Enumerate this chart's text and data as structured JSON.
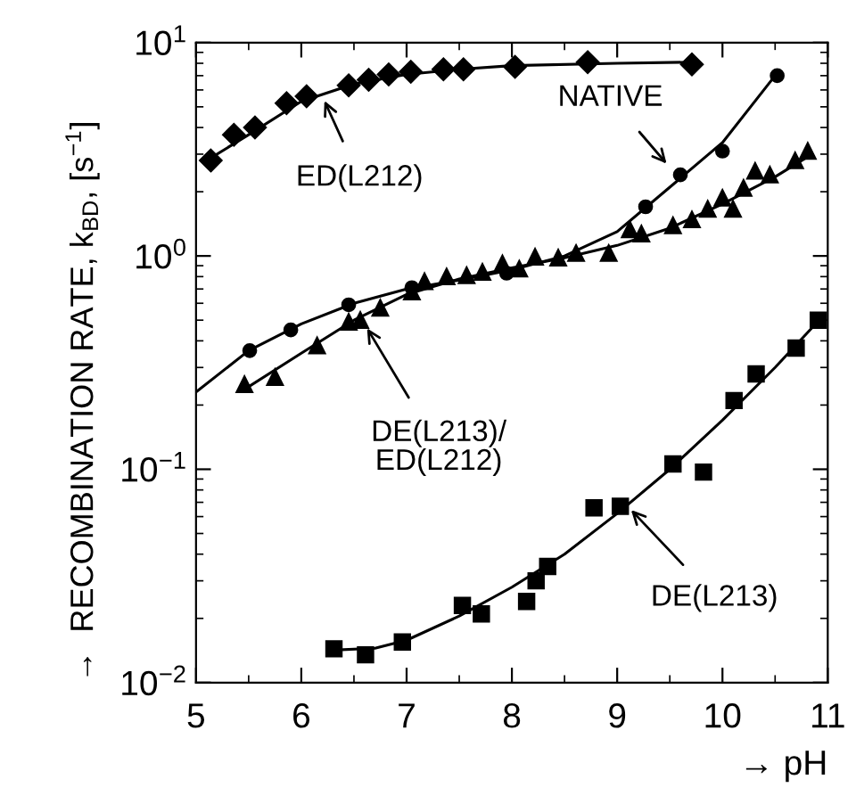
{
  "chart_data": {
    "type": "scatter",
    "xlabel": "→ pH",
    "ylabel": "→  RECOMBINATION RATE, k$_{BD}$, [s$^{−1}$]",
    "log": "y",
    "xlim": [
      5,
      11
    ],
    "ylim": [
      0.01,
      10
    ],
    "xticks": [
      5,
      6,
      7,
      8,
      9,
      10,
      11
    ],
    "yticks": [
      {
        "value": 0.01,
        "label": "10$^{−2}$"
      },
      {
        "value": 0.1,
        "label": "10$^{−1}$"
      },
      {
        "value": 1,
        "label": "10$^{0}$"
      },
      {
        "value": 10,
        "label": "10$^{1}$"
      }
    ],
    "grid": false,
    "legend": false,
    "series": [
      {
        "marker": "diamond",
        "color": "#000000",
        "x": [
          5.14,
          5.36,
          5.56,
          5.86,
          6.05,
          6.45,
          6.64,
          6.83,
          7.04,
          7.35,
          7.54,
          8.03,
          8.72,
          9.71
        ],
        "values": [
          2.8,
          3.7,
          4.0,
          5.2,
          5.6,
          6.3,
          6.7,
          7.1,
          7.3,
          7.5,
          7.5,
          7.7,
          8.1,
          7.9
        ]
      },
      {
        "type": "line",
        "marker": "none",
        "color": "#000000",
        "x": [
          5.1,
          5.5,
          6.0,
          6.5,
          7.0,
          7.5,
          8.0,
          9.0,
          9.7
        ],
        "values": [
          2.8,
          3.7,
          5.3,
          6.4,
          7.1,
          7.5,
          7.8,
          8.0,
          8.1
        ]
      },
      {
        "marker": "circle",
        "color": "#000000",
        "x": [
          5.51,
          5.9,
          6.45,
          7.05,
          7.95,
          9.27,
          9.6,
          10.0,
          10.52
        ],
        "values": [
          0.36,
          0.45,
          0.59,
          0.71,
          0.83,
          1.7,
          2.4,
          3.1,
          7.0
        ]
      },
      {
        "type": "line",
        "marker": "none",
        "color": "#000000",
        "x": [
          5.0,
          5.5,
          6.0,
          6.5,
          7.0,
          7.5,
          8.0,
          8.5,
          9.0,
          9.5,
          10.0,
          10.5
        ],
        "values": [
          0.23,
          0.36,
          0.48,
          0.6,
          0.7,
          0.77,
          0.86,
          1.0,
          1.3,
          2.1,
          3.4,
          7.0
        ]
      },
      {
        "marker": "triangle",
        "color": "#000000",
        "x": [
          5.46,
          5.75,
          6.15,
          6.45,
          6.56,
          6.75,
          7.05,
          7.17,
          7.38,
          7.57,
          7.72,
          7.91,
          8.07,
          8.22,
          8.44,
          8.61,
          8.92,
          9.12,
          9.23,
          9.53,
          9.71,
          9.86,
          10.0,
          10.1,
          10.2,
          10.31,
          10.45,
          10.69,
          10.81
        ],
        "values": [
          0.25,
          0.27,
          0.38,
          0.49,
          0.5,
          0.57,
          0.68,
          0.76,
          0.8,
          0.81,
          0.84,
          0.92,
          0.87,
          0.99,
          0.98,
          1.03,
          1.03,
          1.33,
          1.27,
          1.39,
          1.48,
          1.66,
          1.87,
          1.66,
          2.08,
          2.5,
          2.4,
          2.8,
          3.1
        ]
      },
      {
        "type": "line",
        "marker": "none",
        "color": "#000000",
        "x": [
          5.45,
          6.0,
          6.5,
          7.0,
          7.5,
          8.0,
          8.5,
          9.0,
          9.5,
          10.0,
          10.5,
          10.85
        ],
        "values": [
          0.235,
          0.35,
          0.5,
          0.66,
          0.78,
          0.88,
          0.98,
          1.12,
          1.35,
          1.75,
          2.35,
          3.0
        ]
      },
      {
        "marker": "square",
        "color": "#000000",
        "x": [
          6.31,
          6.61,
          6.96,
          7.53,
          7.71,
          8.14,
          8.23,
          8.34,
          8.78,
          9.03,
          9.53,
          9.82,
          10.11,
          10.32,
          10.7,
          10.91
        ],
        "values": [
          0.0144,
          0.0135,
          0.0155,
          0.023,
          0.021,
          0.024,
          0.03,
          0.035,
          0.066,
          0.067,
          0.106,
          0.097,
          0.21,
          0.28,
          0.37,
          0.5
        ]
      },
      {
        "type": "line",
        "marker": "none",
        "color": "#000000",
        "x": [
          6.3,
          6.7,
          7.0,
          7.5,
          8.0,
          8.5,
          9.0,
          9.5,
          10.0,
          10.5,
          10.95
        ],
        "values": [
          0.0142,
          0.0145,
          0.0158,
          0.0205,
          0.028,
          0.04,
          0.062,
          0.1,
          0.17,
          0.3,
          0.52
        ]
      }
    ],
    "annotations": [
      {
        "text": "ED(L212)",
        "x": 6.2,
        "y": 5.6
      },
      {
        "text": "NATIVE",
        "x": 9.5,
        "y": 2.6
      },
      {
        "text": "DE(L213)/\nED(L212)",
        "x": 6.6,
        "y": 0.48
      },
      {
        "text": "DE(L213)",
        "x": 9.1,
        "y": 0.067
      }
    ]
  }
}
